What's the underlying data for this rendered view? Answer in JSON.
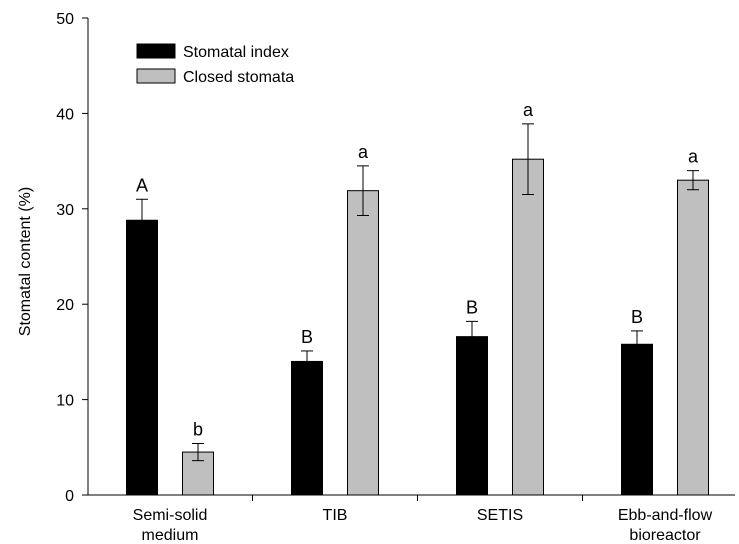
{
  "chart_data": {
    "type": "bar",
    "title": "",
    "xlabel": "",
    "ylabel": "Stomatal content (%)",
    "ylim": [
      0,
      50
    ],
    "yticks": [
      0,
      10,
      20,
      30,
      40,
      50
    ],
    "grid": false,
    "legend_position": "top-left",
    "categories": [
      [
        "Semi-solid",
        "medium"
      ],
      [
        "TIB"
      ],
      [
        "SETIS"
      ],
      [
        "Ebb-and-flow",
        "bioreactor"
      ]
    ],
    "series": [
      {
        "name": "Stomatal index",
        "color": "#000000",
        "values": [
          28.8,
          14.0,
          16.6,
          15.8
        ],
        "errors": [
          2.2,
          1.1,
          1.6,
          1.4
        ],
        "labels": [
          "A",
          "B",
          "B",
          "B"
        ]
      },
      {
        "name": "Closed stomata",
        "color": "#bfbfbf",
        "values": [
          4.5,
          31.9,
          35.2,
          33.0
        ],
        "errors": [
          0.9,
          2.6,
          3.7,
          1.0
        ],
        "labels": [
          "b",
          "a",
          "a",
          "a"
        ]
      }
    ]
  }
}
